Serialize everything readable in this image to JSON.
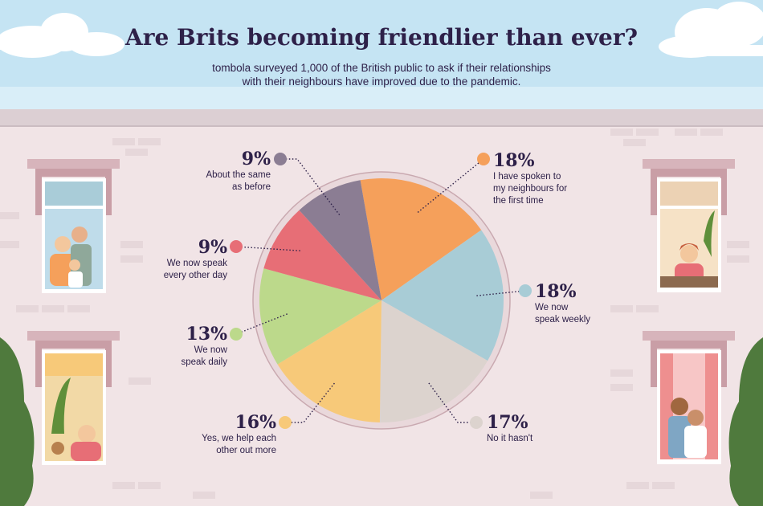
{
  "title": "Are Brits becoming friendlier than ever?",
  "subtitle_line1": "tombola surveyed 1,000 of the British public to ask if their relationships",
  "subtitle_line2": "with their neighbours have improved due to the pandemic.",
  "colors": {
    "sky": "#c5e4f3",
    "wall": "#f1e4e6",
    "text": "#2e2149"
  },
  "chart_data": {
    "type": "pie",
    "slices": [
      {
        "pct_label": "18%",
        "value": 18,
        "label_line1": "I have spoken to",
        "label_line2": "my neighbours for",
        "label_line3": "the first time",
        "color": "#f5a05b"
      },
      {
        "pct_label": "18%",
        "value": 18,
        "label_line1": "We now",
        "label_line2": "speak weekly",
        "color": "#a8ccd6"
      },
      {
        "pct_label": "17%",
        "value": 17,
        "label_line1": "No it hasn't",
        "color": "#dcd3ce"
      },
      {
        "pct_label": "16%",
        "value": 16,
        "label_line1": "Yes, we help each",
        "label_line2": "other out more",
        "color": "#f7c979"
      },
      {
        "pct_label": "13%",
        "value": 13,
        "label_line1": "We now",
        "label_line2": "speak daily",
        "color": "#bcd98b"
      },
      {
        "pct_label": "9%",
        "value": 9,
        "label_line1": "We now speak",
        "label_line2": "every other day",
        "color": "#e76e76"
      },
      {
        "pct_label": "9%",
        "value": 9,
        "label_line1": "About the same",
        "label_line2": "as before",
        "color": "#8b7d93"
      }
    ]
  }
}
